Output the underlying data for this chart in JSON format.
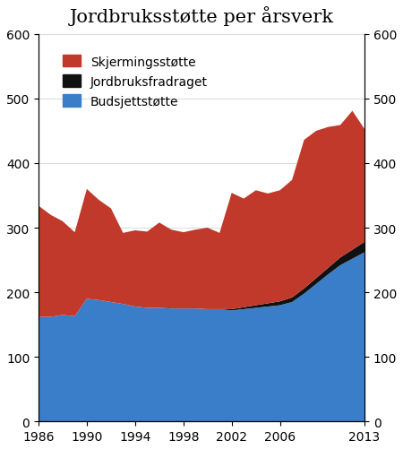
{
  "title": "Jordbruksstøtte per årsverk",
  "years": [
    1986,
    1987,
    1988,
    1989,
    1990,
    1991,
    1992,
    1993,
    1994,
    1995,
    1996,
    1997,
    1998,
    1999,
    2000,
    2001,
    2002,
    2003,
    2004,
    2005,
    2006,
    2007,
    2008,
    2009,
    2010,
    2011,
    2012,
    2013
  ],
  "budsjettstotte": [
    162,
    162,
    165,
    163,
    190,
    188,
    185,
    182,
    178,
    176,
    176,
    175,
    175,
    175,
    174,
    174,
    172,
    174,
    176,
    178,
    180,
    185,
    198,
    213,
    228,
    242,
    252,
    262
  ],
  "jordbruksfradraget": [
    0,
    0,
    0,
    0,
    0,
    0,
    0,
    0,
    0,
    0,
    0,
    0,
    0,
    0,
    0,
    0,
    2,
    3,
    4,
    5,
    6,
    7,
    8,
    9,
    10,
    12,
    14,
    16
  ],
  "skjermingsstotte": [
    172,
    158,
    145,
    130,
    170,
    155,
    145,
    110,
    118,
    118,
    132,
    122,
    118,
    122,
    126,
    118,
    180,
    168,
    178,
    170,
    172,
    182,
    230,
    228,
    218,
    205,
    215,
    175
  ],
  "colors": {
    "budsjettstotte": "#3a7dc9",
    "jordbruksfradraget": "#111111",
    "skjermingsstotte": "#c0392b"
  },
  "ylim": [
    0,
    600
  ],
  "yticks": [
    0,
    100,
    200,
    300,
    400,
    500,
    600
  ],
  "xticks": [
    1986,
    1990,
    1994,
    1998,
    2002,
    2006,
    2013
  ],
  "background_color": "#ffffff",
  "title_fontsize": 15,
  "tick_fontsize": 10,
  "legend_fontsize": 10
}
